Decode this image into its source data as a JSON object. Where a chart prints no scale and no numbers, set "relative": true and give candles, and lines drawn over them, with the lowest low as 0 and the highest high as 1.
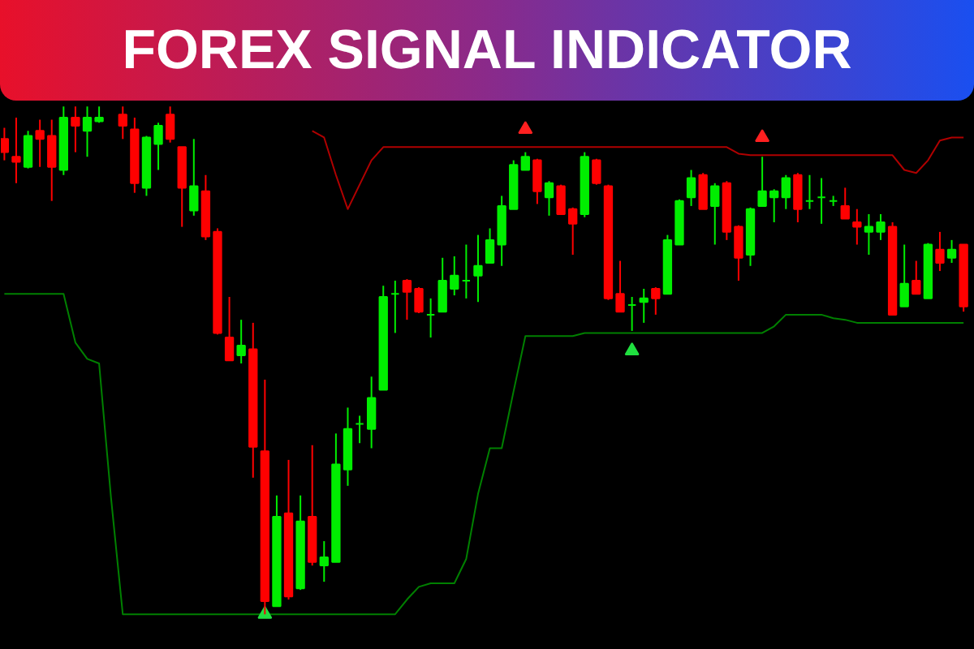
{
  "chart_data": {
    "type": "candlestick",
    "title": "FOREX SIGNAL INDICATOR",
    "relative": true,
    "tick_labels": false,
    "categories": [
      null,
      null,
      null,
      null,
      null,
      null,
      null,
      null,
      null,
      null,
      null,
      null,
      null,
      null,
      null,
      null,
      null,
      null,
      null,
      null,
      null,
      null,
      null,
      null,
      null,
      null,
      null,
      null,
      null,
      null,
      null,
      null,
      null,
      null,
      null,
      null,
      null,
      null,
      null,
      null,
      null,
      null,
      null,
      null,
      null,
      null,
      null,
      null,
      null,
      null,
      null,
      null,
      null,
      null,
      null,
      null,
      null,
      null,
      null,
      null,
      null,
      null,
      null,
      null,
      null,
      null,
      null,
      null,
      null,
      null,
      null,
      null,
      null,
      null,
      null,
      null,
      null,
      null,
      null,
      null,
      null,
      null
    ],
    "ohlc": [
      [
        0.936,
        0.958,
        0.894,
        0.91
      ],
      [
        0.901,
        0.978,
        0.849,
        0.891
      ],
      [
        0.881,
        0.952,
        0.878,
        0.942
      ],
      [
        0.952,
        0.974,
        0.881,
        0.936
      ],
      [
        0.942,
        0.974,
        0.814,
        0.881
      ],
      [
        0.875,
        1.0,
        0.865,
        0.978
      ],
      [
        0.978,
        1.0,
        0.91,
        0.962
      ],
      [
        0.952,
        1.0,
        0.901,
        0.978
      ],
      [
        0.971,
        1.0,
        0.968,
        0.978
      ],
      null,
      [
        0.984,
        1.0,
        0.936,
        0.962
      ],
      [
        0.955,
        0.978,
        0.83,
        0.849
      ],
      [
        0.84,
        0.942,
        0.824,
        0.939
      ],
      [
        0.926,
        0.968,
        0.875,
        0.962
      ],
      [
        0.984,
        1.0,
        0.929,
        0.936
      ],
      [
        0.92,
        0.92,
        0.763,
        0.84
      ],
      [
        0.795,
        0.936,
        0.785,
        0.843
      ],
      [
        0.833,
        0.865,
        0.737,
        0.744
      ],
      [
        0.753,
        0.76,
        0.551,
        0.554
      ],
      [
        0.545,
        0.625,
        0.5,
        0.5
      ],
      [
        0.51,
        0.58,
        0.494,
        0.529
      ],
      [
        0.522,
        0.574,
        0.269,
        0.33
      ],
      [
        0.321,
        0.462,
        0,
        0.026
      ],
      [
        0.016,
        0.234,
        0.016,
        0.192
      ],
      [
        0.199,
        0.304,
        0.029,
        0.035
      ],
      [
        0.051,
        0.234,
        0.048,
        0.183
      ],
      [
        0.192,
        0.333,
        0.096,
        0.103
      ],
      [
        0.096,
        0.144,
        0.064,
        0.112
      ],
      [
        0.103,
        0.356,
        0.103,
        0.295
      ],
      [
        0.285,
        0.407,
        0.253,
        0.365
      ],
      [
        0.375,
        0.391,
        0.337,
        0.375
      ],
      [
        0.365,
        0.468,
        0.327,
        0.426
      ],
      [
        0.442,
        0.647,
        0.442,
        0.625
      ],
      [
        0.631,
        0.657,
        0.554,
        0.631
      ],
      [
        0.657,
        0.66,
        0.58,
        0.635
      ],
      [
        0.641,
        0.644,
        0.593,
        0.596
      ],
      [
        0.59,
        0.622,
        0.545,
        0.59
      ],
      [
        0.596,
        0.702,
        0.596,
        0.657
      ],
      [
        0.641,
        0.705,
        0.628,
        0.667
      ],
      [
        0.657,
        0.728,
        0.622,
        0.657
      ],
      [
        0.667,
        0.747,
        0.615,
        0.686
      ],
      [
        0.692,
        0.76,
        0.692,
        0.737
      ],
      [
        0.728,
        0.824,
        0.686,
        0.804
      ],
      [
        0.798,
        0.894,
        0.798,
        0.885
      ],
      [
        0.875,
        0.91,
        0.875,
        0.901
      ],
      [
        0.894,
        0.897,
        0.808,
        0.833
      ],
      [
        0.821,
        0.853,
        0.785,
        0.849
      ],
      [
        0.843,
        0.846,
        0.788,
        0.788
      ],
      [
        0.798,
        0.801,
        0.708,
        0.769
      ],
      [
        0.788,
        0.91,
        0.782,
        0.901
      ],
      [
        0.894,
        0.897,
        0.846,
        0.849
      ],
      [
        0.843,
        0.846,
        0.619,
        0.622
      ],
      [
        0.631,
        0.696,
        0.596,
        0.596
      ],
      [
        0.609,
        0.625,
        0.558,
        0.609
      ],
      [
        0.615,
        0.641,
        0.574,
        0.622
      ],
      [
        0.641,
        0.644,
        0.59,
        0.622
      ],
      [
        0.631,
        0.747,
        0.631,
        0.737
      ],
      [
        0.728,
        0.817,
        0.728,
        0.814
      ],
      [
        0.821,
        0.875,
        0.804,
        0.859
      ],
      [
        0.865,
        0.869,
        0.798,
        0.798
      ],
      [
        0.804,
        0.849,
        0.728,
        0.843
      ],
      [
        0.849,
        0.853,
        0.737,
        0.753
      ],
      [
        0.763,
        0.766,
        0.657,
        0.702
      ],
      [
        0.708,
        0.801,
        0.686,
        0.798
      ],
      [
        0.804,
        0.901,
        0.804,
        0.833
      ],
      [
        0.821,
        0.837,
        0.772,
        0.833
      ],
      [
        0.821,
        0.865,
        0.798,
        0.859
      ],
      [
        0.865,
        0.869,
        0.772,
        0.798
      ],
      [
        0.814,
        0.865,
        0.798,
        0.814
      ],
      [
        0.821,
        0.859,
        0.769,
        0.821
      ],
      [
        0.814,
        0.824,
        0.804,
        0.814
      ],
      [
        0.804,
        0.84,
        0.779,
        0.779
      ],
      [
        0.772,
        0.798,
        0.728,
        0.763
      ],
      [
        0.753,
        0.788,
        0.708,
        0.763
      ],
      [
        0.753,
        0.788,
        0.737,
        0.772
      ],
      [
        0.763,
        0.772,
        0.59,
        0.59
      ],
      [
        0.606,
        0.728,
        0.606,
        0.651
      ],
      [
        0.657,
        0.696,
        0.631,
        0.631
      ],
      [
        0.622,
        0.731,
        0.622,
        0.728
      ],
      [
        0.718,
        0.753,
        0.676,
        0.692
      ],
      [
        0.702,
        0.737,
        0.692,
        0.718
      ],
      [
        0.728,
        0.728,
        0.596,
        0.606
      ]
    ],
    "colors": [
      "#ff0000",
      "#ff0000",
      "#00ee00",
      "#ff0000",
      "#ff0000",
      "#00ee00",
      "#ff0000",
      "#00ee00",
      "#00ee00",
      null,
      "#ff0000",
      "#ff0000",
      "#00ee00",
      "#00ee00",
      "#ff0000",
      "#ff0000",
      "#00ee00",
      "#ff0000",
      "#ff0000",
      "#ff0000",
      "#00ee00",
      "#ff0000",
      "#ff0000",
      "#00ee00",
      "#ff0000",
      "#00ee00",
      "#ff0000",
      "#00ee00",
      "#00ee00",
      "#00ee00",
      "#00ee00",
      "#00ee00",
      "#00ee00",
      "#00ee00",
      "#ff0000",
      "#ff0000",
      "#00ee00",
      "#00ee00",
      "#00ee00",
      "#00ee00",
      "#00ee00",
      "#00ee00",
      "#00ee00",
      "#00ee00",
      "#00ee00",
      "#ff0000",
      "#00ee00",
      "#ff0000",
      "#ff0000",
      "#00ee00",
      "#ff0000",
      "#ff0000",
      "#ff0000",
      "#00ee00",
      "#00ee00",
      "#ff0000",
      "#00ee00",
      "#00ee00",
      "#00ee00",
      "#ff0000",
      "#00ee00",
      "#ff0000",
      "#ff0000",
      "#00ee00",
      "#00ee00",
      "#00ee00",
      "#00ee00",
      "#ff0000",
      "#00ee00",
      "#00ee00",
      "#00ee00",
      "#ff0000",
      "#ff0000",
      "#00ee00",
      "#00ee00",
      "#ff0000",
      "#00ee00",
      "#ff0000",
      "#00ee00",
      "#ff0000",
      "#00ee00",
      "#ff0000"
    ],
    "series": [
      {
        "type": "line",
        "color": "#b00000",
        "values": [
          null,
          null,
          null,
          null,
          null,
          null,
          null,
          null,
          null,
          null,
          null,
          null,
          null,
          null,
          null,
          null,
          null,
          null,
          null,
          null,
          null,
          null,
          null,
          null,
          null,
          null,
          0.952,
          0.939,
          0.865,
          0.798,
          0.846,
          0.894,
          0.92,
          0.92,
          0.92,
          0.92,
          0.92,
          0.92,
          0.92,
          0.92,
          0.92,
          0.92,
          0.92,
          0.92,
          0.92,
          0.92,
          0.92,
          0.92,
          0.92,
          0.92,
          0.92,
          0.92,
          0.92,
          0.92,
          0.92,
          0.92,
          0.92,
          0.92,
          0.92,
          0.92,
          0.92,
          0.92,
          0.907,
          0.904,
          0.904,
          0.904,
          0.904,
          0.904,
          0.904,
          0.904,
          0.904,
          0.904,
          0.904,
          0.904,
          0.904,
          0.904,
          0.875,
          0.869,
          0.894,
          0.933,
          0.939,
          0.939
        ]
      },
      {
        "type": "line",
        "color": "#008000",
        "values": [
          0.631,
          0.631,
          0.631,
          0.631,
          0.631,
          0.631,
          0.535,
          0.503,
          0.494,
          0.231,
          0,
          0,
          0,
          0,
          0,
          0,
          0,
          0,
          0,
          0,
          0,
          0,
          0,
          0,
          0,
          0,
          0,
          0,
          0,
          0,
          0,
          0,
          0,
          0,
          0.029,
          0.054,
          0.061,
          0.061,
          0.061,
          0.109,
          0.237,
          0.327,
          0.327,
          0.439,
          0.548,
          0.548,
          0.548,
          0.548,
          0.548,
          0.554,
          0.554,
          0.554,
          0.554,
          0.554,
          0.554,
          0.554,
          0.554,
          0.554,
          0.554,
          0.554,
          0.554,
          0.554,
          0.554,
          0.554,
          0.554,
          0.567,
          0.59,
          0.59,
          0.59,
          0.59,
          0.583,
          0.58,
          0.574,
          0.574,
          0.574,
          0.574,
          0.574,
          0.574,
          0.574,
          0.574,
          0.574,
          0.574
        ]
      },
      {
        "type": "scatter",
        "marker": "triangle",
        "color": "#ff2020",
        "values": [
          null,
          null,
          null,
          null,
          null,
          null,
          null,
          null,
          null,
          null,
          null,
          null,
          null,
          null,
          null,
          null,
          null,
          null,
          null,
          null,
          null,
          null,
          null,
          null,
          null,
          null,
          null,
          null,
          null,
          null,
          null,
          null,
          null,
          null,
          null,
          null,
          null,
          null,
          null,
          null,
          null,
          null,
          null,
          null,
          0.955,
          null,
          null,
          null,
          null,
          null,
          null,
          null,
          null,
          null,
          null,
          null,
          null,
          null,
          null,
          null,
          null,
          null,
          null,
          null,
          0.939,
          null,
          null,
          null,
          null,
          null,
          null,
          null,
          null,
          null,
          null,
          null,
          null,
          null,
          null,
          null,
          null,
          null
        ]
      },
      {
        "type": "scatter",
        "marker": "triangle",
        "color": "#20e040",
        "values": [
          null,
          null,
          null,
          null,
          null,
          null,
          null,
          null,
          null,
          null,
          null,
          null,
          null,
          null,
          null,
          null,
          null,
          null,
          null,
          null,
          null,
          null,
          0,
          null,
          null,
          null,
          null,
          null,
          null,
          null,
          null,
          null,
          null,
          null,
          null,
          null,
          null,
          null,
          null,
          null,
          null,
          null,
          null,
          null,
          null,
          null,
          null,
          null,
          null,
          null,
          null,
          null,
          null,
          0.519,
          null,
          null,
          null,
          null,
          null,
          null,
          null,
          null,
          null,
          null,
          null,
          null,
          null,
          null,
          null,
          null,
          null,
          null,
          null,
          null,
          null,
          null,
          null,
          null,
          null,
          null,
          null,
          null
        ]
      }
    ]
  }
}
